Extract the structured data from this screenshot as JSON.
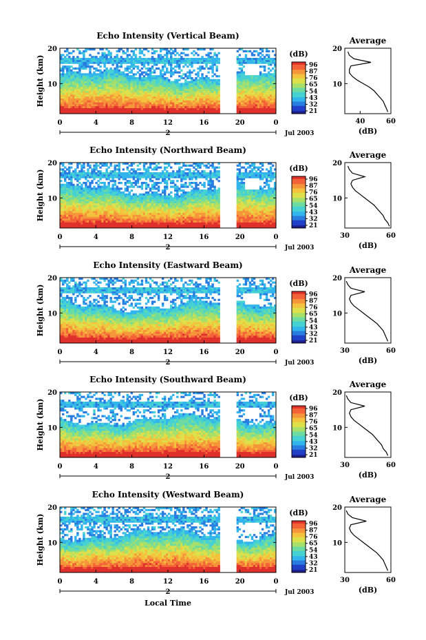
{
  "figure": {
    "xlabel_bottom": "Local Time"
  },
  "colors": {
    "colormap": [
      "#1e1e8c",
      "#2040c8",
      "#2a7de0",
      "#32b4ec",
      "#46d2d2",
      "#6edca0",
      "#a6e06a",
      "#dde04a",
      "#f4c23c",
      "#f6963a",
      "#f46238",
      "#e0302c"
    ],
    "gap": "#ffffff"
  },
  "chart_data": [
    {
      "type": "heatmap",
      "title": "Echo Intensity (Vertical Beam)",
      "ylabel": "Height (km)",
      "xlabel": "",
      "xlim": [
        0,
        24
      ],
      "ylim": [
        1.5,
        20
      ],
      "xticks": [
        "0",
        "4",
        "8",
        "12",
        "16",
        "20",
        "0"
      ],
      "yticks": [
        "10",
        "20"
      ],
      "date_marker": "2",
      "date_label": "Jul 2003",
      "data_gap_hours": [
        17.8,
        19.5
      ],
      "colorbar": {
        "unit": "(dB)",
        "ticks": [
          "96",
          "87",
          "76",
          "65",
          "54",
          "43",
          "32",
          "21"
        ]
      },
      "average": {
        "title": "Average",
        "xlabel": "(dB)",
        "xlim": [
          30,
          60
        ],
        "xticks": [
          "40",
          "60"
        ],
        "yticks": [
          "10",
          "20"
        ],
        "height_km": [
          2,
          3,
          4,
          5,
          6,
          7,
          8,
          9,
          10,
          11,
          12,
          13,
          14,
          15,
          16,
          17,
          18,
          19
        ],
        "value_db": [
          58,
          57,
          56,
          55,
          53,
          51,
          49,
          46,
          42,
          38,
          35,
          33,
          33,
          34,
          47,
          36,
          33,
          32
        ]
      }
    },
    {
      "type": "heatmap",
      "title": "Echo Intensity (Northward Beam)",
      "ylabel": "Height (km)",
      "xlabel": "",
      "xlim": [
        0,
        24
      ],
      "ylim": [
        1.5,
        20
      ],
      "xticks": [
        "0",
        "4",
        "8",
        "12",
        "16",
        "20",
        "0"
      ],
      "yticks": [
        "10",
        "20"
      ],
      "date_marker": "2",
      "date_label": "Jul 2003",
      "data_gap_hours": [
        17.8,
        19.5
      ],
      "colorbar": {
        "unit": "(dB)",
        "ticks": [
          "96",
          "87",
          "76",
          "65",
          "54",
          "43",
          "32",
          "21"
        ]
      },
      "average": {
        "title": "Average",
        "xlabel": "(dB)",
        "xlim": [
          30,
          60
        ],
        "xticks": [
          "30",
          "60"
        ],
        "yticks": [
          "10",
          "20"
        ],
        "height_km": [
          2,
          3,
          4,
          5,
          6,
          7,
          8,
          9,
          10,
          11,
          12,
          13,
          14,
          15,
          16,
          17,
          18,
          19
        ],
        "value_db": [
          59,
          58,
          56,
          55,
          53,
          51,
          49,
          46,
          43,
          40,
          37,
          35,
          34,
          35,
          43,
          35,
          33,
          32
        ]
      }
    },
    {
      "type": "heatmap",
      "title": "Echo Intensity (Eastward Beam)",
      "ylabel": "Height (km)",
      "xlabel": "",
      "xlim": [
        0,
        24
      ],
      "ylim": [
        1.5,
        20
      ],
      "xticks": [
        "0",
        "4",
        "8",
        "12",
        "16",
        "20",
        "0"
      ],
      "yticks": [
        "10",
        "20"
      ],
      "date_marker": "2",
      "date_label": "Jul 2003",
      "data_gap_hours": [
        17.8,
        19.5
      ],
      "colorbar": {
        "unit": "(dB)",
        "ticks": [
          "96",
          "87",
          "76",
          "65",
          "54",
          "43",
          "32",
          "21"
        ]
      },
      "average": {
        "title": "Average",
        "xlabel": "(dB)",
        "xlim": [
          30,
          60
        ],
        "xticks": [
          "30",
          "60"
        ],
        "yticks": [
          "10",
          "20"
        ],
        "height_km": [
          2,
          3,
          4,
          5,
          6,
          7,
          8,
          9,
          10,
          11,
          12,
          13,
          14,
          15,
          16,
          17,
          18,
          19
        ],
        "value_db": [
          58,
          57,
          56,
          55,
          53,
          51,
          48,
          45,
          42,
          39,
          36,
          34,
          33,
          34,
          43,
          34,
          32,
          31
        ]
      }
    },
    {
      "type": "heatmap",
      "title": "Echo Intensity (Southward Beam)",
      "ylabel": "Height (km)",
      "xlabel": "",
      "xlim": [
        0,
        24
      ],
      "ylim": [
        1.5,
        20
      ],
      "xticks": [
        "0",
        "4",
        "8",
        "12",
        "16",
        "20",
        "0"
      ],
      "yticks": [
        "10",
        "20"
      ],
      "date_marker": "2",
      "date_label": "Jul 2003",
      "data_gap_hours": [
        17.8,
        19.5
      ],
      "colorbar": {
        "unit": "(dB)",
        "ticks": [
          "96",
          "87",
          "76",
          "65",
          "54",
          "43",
          "32",
          "21"
        ]
      },
      "average": {
        "title": "Average",
        "xlabel": "(dB)",
        "xlim": [
          30,
          60
        ],
        "xticks": [
          "30",
          "60"
        ],
        "yticks": [
          "10",
          "20"
        ],
        "height_km": [
          2,
          3,
          4,
          5,
          6,
          7,
          8,
          9,
          10,
          11,
          12,
          13,
          14,
          15,
          16,
          17,
          18,
          19
        ],
        "value_db": [
          58,
          57,
          55,
          54,
          52,
          50,
          48,
          45,
          42,
          39,
          36,
          34,
          33,
          34,
          43,
          34,
          32,
          31
        ]
      }
    },
    {
      "type": "heatmap",
      "title": "Echo Intensity (Westward Beam)",
      "ylabel": "Height (km)",
      "xlabel": "Local Time",
      "xlim": [
        0,
        24
      ],
      "ylim": [
        1.5,
        20
      ],
      "xticks": [
        "0",
        "4",
        "8",
        "12",
        "16",
        "20",
        "0"
      ],
      "yticks": [
        "10",
        "20"
      ],
      "date_marker": "2",
      "date_label": "Jul 2003",
      "data_gap_hours": [
        17.8,
        19.5
      ],
      "colorbar": {
        "unit": "(dB)",
        "ticks": [
          "96",
          "87",
          "76",
          "65",
          "54",
          "43",
          "32",
          "21"
        ]
      },
      "average": {
        "title": "Average",
        "xlabel": "(dB)",
        "xlim": [
          30,
          60
        ],
        "xticks": [
          "30",
          "60"
        ],
        "yticks": [
          "10",
          "20"
        ],
        "height_km": [
          2,
          3,
          4,
          5,
          6,
          7,
          8,
          9,
          10,
          11,
          12,
          13,
          14,
          15,
          16,
          17,
          18,
          19
        ],
        "value_db": [
          58,
          57,
          56,
          55,
          53,
          51,
          48,
          45,
          42,
          39,
          36,
          34,
          33,
          34,
          44,
          35,
          32,
          31
        ]
      }
    }
  ]
}
